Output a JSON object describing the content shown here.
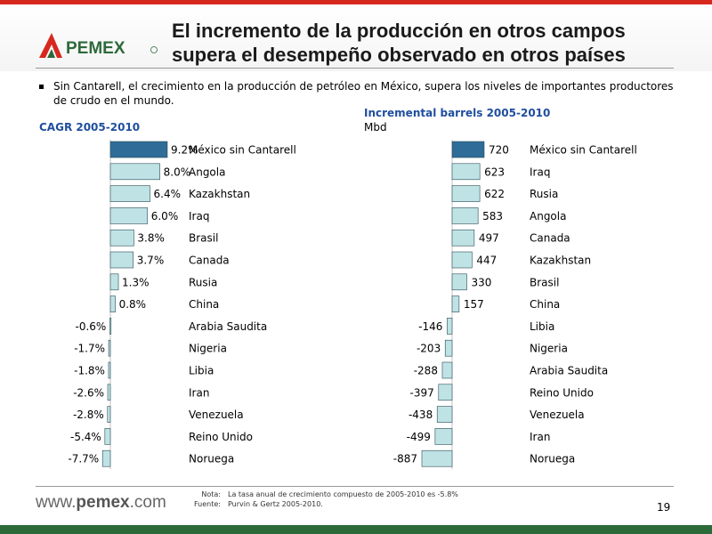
{
  "header": {
    "brand": "PEMEX",
    "title_line1": "El incremento de la producción en otros campos",
    "title_line2": "supera el desempeño observado en otros países"
  },
  "bullet": "Sin Cantarell, el crecimiento en la producción de petróleo en México, supera los niveles de importantes productores de crudo en el mundo.",
  "colors": {
    "highlight": "#2f6c98",
    "bar": "#bfe3e5",
    "bar_stroke": "#2b4a55",
    "title_accent": "#1f4e9e"
  },
  "chart_data": [
    {
      "type": "bar",
      "orientation": "horizontal",
      "title": "CAGR 2005-2010",
      "unit": "%",
      "xlim": [
        -7.7,
        9.2
      ],
      "highlight": "México sin Cantarell",
      "categories": [
        "México sin Cantarell",
        "Angola",
        "Kazakhstan",
        "Iraq",
        "Brasil",
        "Canada",
        "Rusia",
        "China",
        "Arabia Saudita",
        "Nigeria",
        "Libia",
        "Iran",
        "Venezuela",
        "Reino Unido",
        "Noruega"
      ],
      "values": [
        9.2,
        8.0,
        6.4,
        6.0,
        3.8,
        3.7,
        1.3,
        0.8,
        -0.6,
        -1.7,
        -1.8,
        -2.6,
        -2.8,
        -5.4,
        -7.7
      ]
    },
    {
      "type": "bar",
      "orientation": "horizontal",
      "title": "Incremental barrels 2005-2010",
      "subtitle": "Mbd",
      "xlim": [
        -887,
        720
      ],
      "highlight": "México sin Cantarell",
      "categories": [
        "México sin Cantarell",
        "Iraq",
        "Rusia",
        "Angola",
        "Canada",
        "Kazakhstan",
        "Brasil",
        "China",
        "Libia",
        "Nigeria",
        "Arabia Saudita",
        "Reino Unido",
        "Venezuela",
        "Iran",
        "Noruega"
      ],
      "values": [
        720,
        623,
        622,
        583,
        497,
        447,
        330,
        157,
        -146,
        -203,
        -288,
        -397,
        -438,
        -499,
        -887
      ]
    }
  ],
  "footer": {
    "site_prefix": "www.",
    "site_brand": "pemex",
    "site_suffix": ".com",
    "note_label": "Nota:",
    "note_text": "La tasa anual de crecimiento compuesto de 2005-2010 es -5.8%",
    "source_label": "Fuente:",
    "source_text": "Purvin & Gertz 2005-2010.",
    "page_number": "19"
  }
}
